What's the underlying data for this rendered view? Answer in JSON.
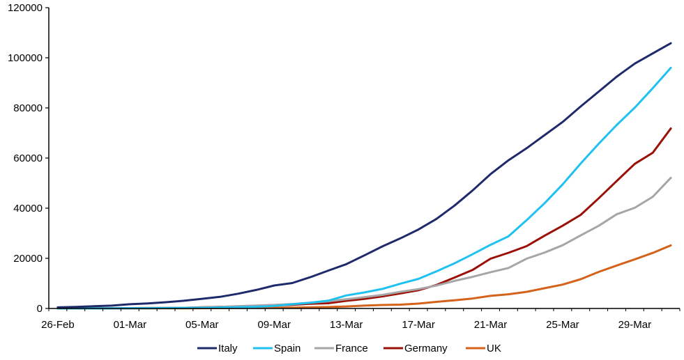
{
  "chart_data": {
    "type": "line",
    "title": "",
    "xlabel": "",
    "ylabel": "",
    "ylim": [
      0,
      120000
    ],
    "yticks": [
      "0",
      "20000",
      "40000",
      "60000",
      "80000",
      "100000",
      "120000"
    ],
    "x_start": "2020-02-26",
    "x_end": "2020-03-31",
    "xticks": [
      {
        "date": "2020-02-26",
        "label": "26-Feb"
      },
      {
        "date": "2020-03-01",
        "label": "01-Mar"
      },
      {
        "date": "2020-03-05",
        "label": "05-Mar"
      },
      {
        "date": "2020-03-09",
        "label": "09-Mar"
      },
      {
        "date": "2020-03-13",
        "label": "13-Mar"
      },
      {
        "date": "2020-03-17",
        "label": "17-Mar"
      },
      {
        "date": "2020-03-21",
        "label": "21-Mar"
      },
      {
        "date": "2020-03-25",
        "label": "25-Mar"
      },
      {
        "date": "2020-03-29",
        "label": "29-Mar"
      }
    ],
    "grid": false,
    "legend_position": "bottom",
    "x": [
      "2020-02-26",
      "2020-02-27",
      "2020-02-28",
      "2020-02-29",
      "2020-03-01",
      "2020-03-02",
      "2020-03-03",
      "2020-03-04",
      "2020-03-05",
      "2020-03-06",
      "2020-03-07",
      "2020-03-08",
      "2020-03-09",
      "2020-03-10",
      "2020-03-11",
      "2020-03-12",
      "2020-03-13",
      "2020-03-14",
      "2020-03-15",
      "2020-03-16",
      "2020-03-17",
      "2020-03-18",
      "2020-03-19",
      "2020-03-20",
      "2020-03-21",
      "2020-03-22",
      "2020-03-23",
      "2020-03-24",
      "2020-03-25",
      "2020-03-26",
      "2020-03-27",
      "2020-03-28",
      "2020-03-29",
      "2020-03-30",
      "2020-03-31"
    ],
    "series": [
      {
        "name": "Italy",
        "color": "#1f2a6b",
        "values": [
          450,
          650,
          890,
          1130,
          1690,
          2040,
          2500,
          3090,
          3860,
          4640,
          5880,
          7380,
          9170,
          10150,
          12460,
          15110,
          17660,
          21160,
          24750,
          27980,
          31510,
          35710,
          41040,
          47020,
          53580,
          59140,
          63930,
          69180,
          74390,
          80590,
          86500,
          92470,
          97690,
          101740,
          105800
        ]
      },
      {
        "name": "Spain",
        "color": "#1fc1f0",
        "values": [
          10,
          20,
          30,
          50,
          80,
          120,
          165,
          220,
          280,
          400,
          500,
          670,
          1000,
          1700,
          2300,
          3100,
          5200,
          6400,
          7800,
          9900,
          11800,
          14800,
          18000,
          21600,
          25400,
          28800,
          35200,
          42000,
          49500,
          57800,
          65700,
          73200,
          80100,
          87900,
          96000
        ]
      },
      {
        "name": "France",
        "color": "#a6a6a6",
        "values": [
          15,
          20,
          40,
          60,
          130,
          190,
          210,
          290,
          420,
          650,
          950,
          1200,
          1410,
          1780,
          2290,
          2880,
          3660,
          4500,
          5420,
          6630,
          7730,
          9130,
          10990,
          12610,
          14460,
          16180,
          19860,
          22300,
          25230,
          29150,
          32960,
          37580,
          40170,
          44550,
          52130
        ]
      },
      {
        "name": "Germany",
        "color": "#9b1006",
        "values": [
          20,
          30,
          50,
          80,
          130,
          160,
          200,
          260,
          480,
          670,
          800,
          1040,
          1180,
          1460,
          1900,
          2080,
          3060,
          3800,
          4840,
          6010,
          7270,
          9360,
          12330,
          15320,
          19850,
          22210,
          24870,
          29060,
          33000,
          37320,
          43940,
          50870,
          57690,
          62100,
          71800
        ]
      },
      {
        "name": "UK",
        "color": "#d4621a",
        "values": [
          10,
          10,
          20,
          20,
          30,
          40,
          50,
          80,
          110,
          160,
          200,
          270,
          320,
          370,
          450,
          590,
          800,
          1140,
          1390,
          1540,
          1950,
          2630,
          3270,
          3980,
          5020,
          5680,
          6650,
          8080,
          9530,
          11660,
          14580,
          17150,
          19620,
          22180,
          25160
        ]
      }
    ]
  }
}
